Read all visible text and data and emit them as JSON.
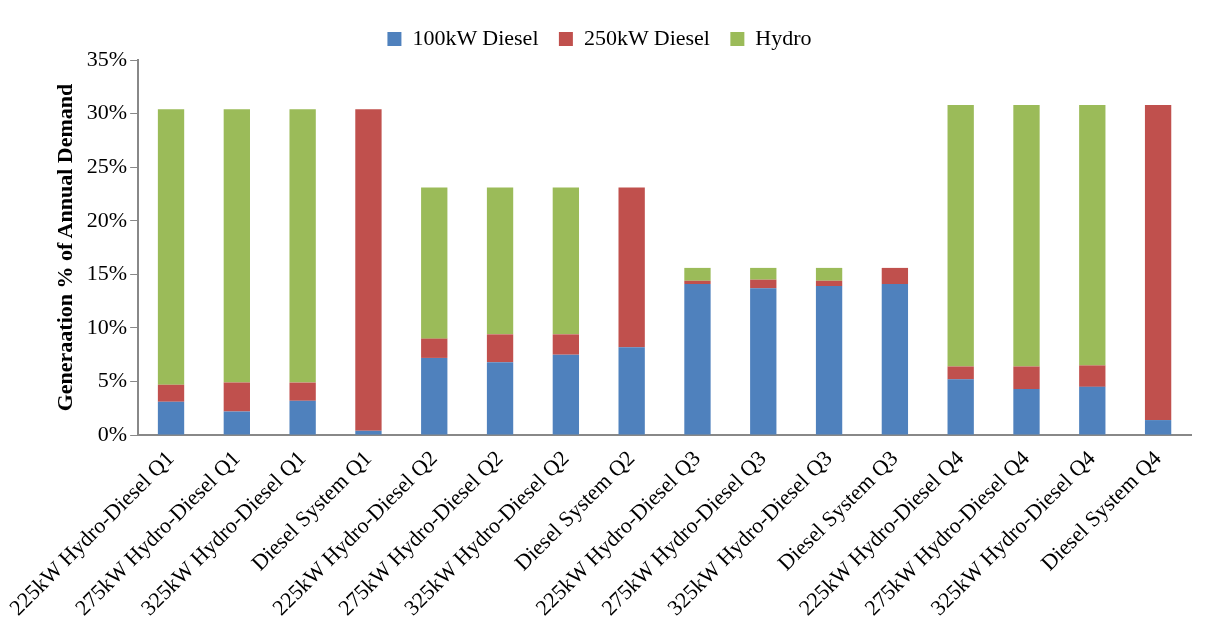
{
  "chart_data": {
    "type": "bar",
    "stacked": true,
    "ylabel": "Generaation % of Annual Demand",
    "categories": [
      "225kW Hydro-Diesel Q1",
      "275kW Hydro-Diesel Q1",
      "325kW Hydro-Diesel Q1",
      "Diesel System Q1",
      "225kW Hydro-Diesel Q2",
      "275kW Hydro-Diesel Q2",
      "325kW Hydro-Diesel Q2",
      "Diesel System Q2",
      "225kW Hydro-Diesel Q3",
      "275kW Hydro-Diesel Q3",
      "325kW Hydro-Diesel Q3",
      "Diesel System Q3",
      "225kW Hydro-Diesel Q4",
      "275kW Hydro-Diesel Q4",
      "325kW Hydro-Diesel Q4",
      "Diesel System Q4"
    ],
    "series": [
      {
        "name": "100kW Diesel",
        "color": "#4f81bd",
        "values": [
          3.1,
          2.2,
          3.2,
          0.4,
          7.2,
          6.8,
          7.5,
          8.2,
          14.1,
          13.7,
          13.9,
          14.1,
          5.2,
          4.3,
          4.5,
          1.4
        ]
      },
      {
        "name": "250kW Diesel",
        "color": "#c0504d",
        "values": [
          1.6,
          2.7,
          1.7,
          30.0,
          1.8,
          2.6,
          1.9,
          14.9,
          0.3,
          0.8,
          0.5,
          1.5,
          1.2,
          2.1,
          2.0,
          29.4
        ]
      },
      {
        "name": "Hydro",
        "color": "#9bbb59",
        "values": [
          25.7,
          25.5,
          25.5,
          0,
          14.1,
          13.7,
          13.7,
          0,
          1.2,
          1.1,
          1.2,
          0,
          24.4,
          24.4,
          24.3,
          0
        ]
      }
    ],
    "ylim": [
      0,
      35
    ],
    "yticks": [
      {
        "value": 0,
        "label": "0%"
      },
      {
        "value": 5,
        "label": "5%"
      },
      {
        "value": 10,
        "label": "10%"
      },
      {
        "value": 15,
        "label": "15%"
      },
      {
        "value": 20,
        "label": "20%"
      },
      {
        "value": 25,
        "label": "25%"
      },
      {
        "value": 30,
        "label": "30%"
      },
      {
        "value": 35,
        "label": "35%"
      }
    ],
    "grid": false,
    "legend": "top"
  }
}
